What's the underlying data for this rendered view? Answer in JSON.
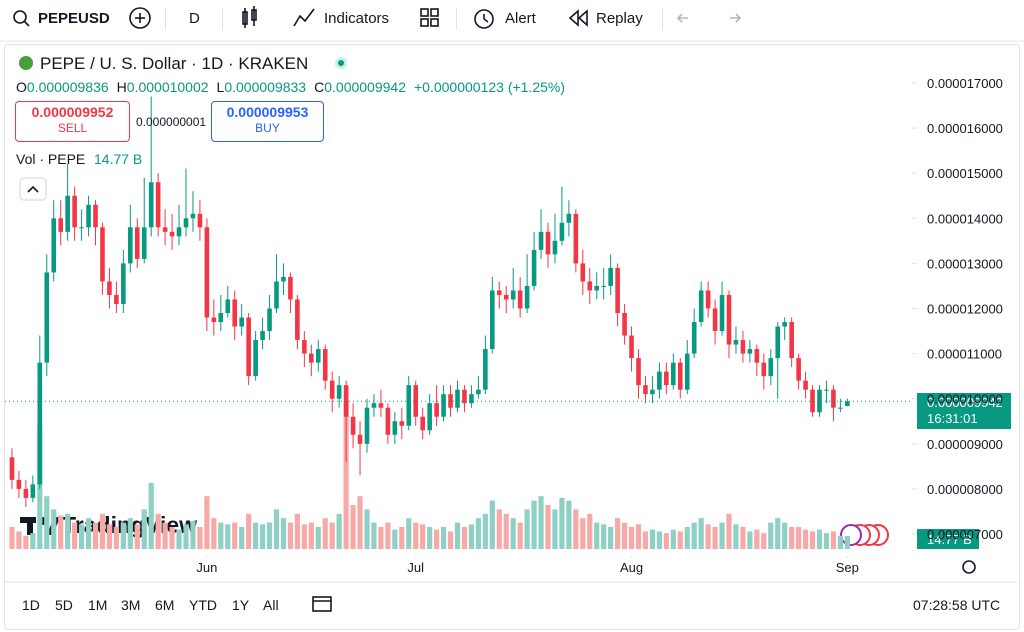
{
  "toolbar": {
    "symbol": "PEPEUSD",
    "interval": "D",
    "indicators": "Indicators",
    "alert": "Alert",
    "replay": "Replay"
  },
  "legend": {
    "title": "PEPE / U. S. Dollar · 1D · KRAKEN",
    "ohlc": [
      {
        "key": "O",
        "value": "0.000009836"
      },
      {
        "key": "H",
        "value": "0.000010002"
      },
      {
        "key": "L",
        "value": "0.000009833"
      },
      {
        "key": "C",
        "value": "0.000009942"
      }
    ],
    "change": "+0.000000123 (+1.25%)",
    "sell_price": "0.000009952",
    "sell": "SELL",
    "spread": "0.000000001",
    "buy_price": "0.000009953",
    "buy": "BUY",
    "vol_title": "Vol · PEPE",
    "vol_value": "14.77 B"
  },
  "watermark": "TradingView",
  "price_label": {
    "price": "0.000009942",
    "countdown": "16:31:01"
  },
  "bottom_bar": {
    "ranges": [
      "1D",
      "5D",
      "1M",
      "3M",
      "6M",
      "YTD",
      "1Y",
      "All"
    ],
    "clock": "07:28:58 UTC"
  },
  "chart_data": {
    "type": "candlestick",
    "up_color": "#089981",
    "down_color": "#f23645",
    "volume_up_color": "#8fd0c5",
    "volume_down_color": "#f7a9a7",
    "xlim": [
      -1,
      129
    ],
    "xticks": [
      {
        "value": 28,
        "label": "Jun"
      },
      {
        "value": 58,
        "label": "Jul"
      },
      {
        "value": 89,
        "label": "Aug"
      },
      {
        "value": 120,
        "label": "Sep"
      }
    ],
    "ylim": [
      6.645e-06,
      1.7776e-05
    ],
    "yticks": [
      {
        "value": 7e-06,
        "label": "0.000007000"
      },
      {
        "value": 8e-06,
        "label": "0.000008000"
      },
      {
        "value": 9e-06,
        "label": "0.000009000"
      },
      {
        "value": 1e-05,
        "label": "0.000010000"
      },
      {
        "value": 1.1e-05,
        "label": "0.000011000"
      },
      {
        "value": 1.2e-05,
        "label": "0.000012000"
      },
      {
        "value": 1.3e-05,
        "label": "0.000013000"
      },
      {
        "value": 1.4e-05,
        "label": "0.000014000"
      },
      {
        "value": 1.5e-05,
        "label": "0.000015000"
      },
      {
        "value": 1.6e-05,
        "label": "0.000016000"
      },
      {
        "value": 1.7e-05,
        "label": "0.000017000"
      }
    ],
    "open": [
      8.7e-06,
      8.2e-06,
      8e-06,
      7.8e-06,
      8.1e-06,
      1.08e-05,
      1.28e-05,
      1.4e-05,
      1.37e-05,
      1.45e-05,
      1.38e-05,
      1.38e-05,
      1.43e-05,
      1.38e-05,
      1.26e-05,
      1.23e-05,
      1.21e-05,
      1.3e-05,
      1.38e-05,
      1.31e-05,
      1.38e-05,
      1.48e-05,
      1.38e-05,
      1.37e-05,
      1.36e-05,
      1.38e-05,
      1.4e-05,
      1.41e-05,
      1.38e-05,
      1.18e-05,
      1.17e-05,
      1.19e-05,
      1.22e-05,
      1.16e-05,
      1.18e-05,
      1.05e-05,
      1.13e-05,
      1.15e-05,
      1.2e-05,
      1.26e-05,
      1.27e-05,
      1.22e-05,
      1.13e-05,
      1.1e-05,
      1.08e-05,
      1.11e-05,
      1.04e-05,
      1e-05,
      1.03e-05,
      9.6e-06,
      9.2e-06,
      9e-06,
      9.8e-06,
      9.9e-06,
      9.8e-06,
      9.2e-06,
      9.5e-06,
      9.4e-06,
      1.03e-05,
      9.6e-06,
      9.3e-06,
      9.9e-06,
      9.6e-06,
      1.01e-05,
      9.8e-06,
      1.02e-05,
      9.9e-06,
      1.01e-05,
      1.02e-05,
      1.11e-05,
      1.24e-05,
      1.23e-05,
      1.22e-05,
      1.24e-05,
      1.2e-05,
      1.25e-05,
      1.33e-05,
      1.37e-05,
      1.32e-05,
      1.35e-05,
      1.39e-05,
      1.41e-05,
      1.3e-05,
      1.26e-05,
      1.24e-05,
      1.25e-05,
      1.25e-05,
      1.29e-05,
      1.19e-05,
      1.14e-05,
      1.09e-05,
      1.03e-05,
      1.01e-05,
      1.02e-05,
      1.06e-05,
      1.03e-05,
      1.08e-05,
      1.02e-05,
      1.1e-05,
      1.17e-05,
      1.24e-05,
      1.2e-05,
      1.15e-05,
      1.23e-05,
      1.12e-05,
      1.13e-05,
      1.1e-05,
      1.11e-05,
      1.08e-05,
      1.05e-05,
      1.09e-05,
      1.16e-05,
      1.17e-05,
      1.09e-05,
      1.04e-05,
      1.02e-05,
      9.7e-06,
      1.02e-05,
      1.02e-05,
      9.8e-06,
      9.836e-06
    ],
    "high": [
      8.9e-06,
      8.4e-06,
      8.2e-06,
      8.3e-06,
      1.14e-05,
      1.32e-05,
      1.44e-05,
      1.44e-05,
      1.52e-05,
      1.47e-05,
      1.42e-05,
      1.45e-05,
      1.44e-05,
      1.39e-05,
      1.29e-05,
      1.26e-05,
      1.33e-05,
      1.43e-05,
      1.4e-05,
      1.49e-05,
      1.67e-05,
      1.5e-05,
      1.42e-05,
      1.41e-05,
      1.43e-05,
      1.51e-05,
      1.46e-05,
      1.44e-05,
      1.4e-05,
      1.22e-05,
      1.23e-05,
      1.25e-05,
      1.24e-05,
      1.21e-05,
      1.19e-05,
      1.15e-05,
      1.18e-05,
      1.23e-05,
      1.32e-05,
      1.3e-05,
      1.28e-05,
      1.23e-05,
      1.15e-05,
      1.12e-05,
      1.13e-05,
      1.12e-05,
      1.06e-05,
      1.05e-05,
      1.04e-05,
      9.9e-06,
      9.5e-06,
      1e-05,
      1.01e-05,
      1.02e-05,
      9.9e-06,
      9.7e-06,
      9.8e-06,
      1.05e-05,
      1.04e-05,
      9.8e-06,
      1.01e-05,
      1.03e-05,
      1.03e-05,
      1.03e-05,
      1.04e-05,
      1.03e-05,
      1.03e-05,
      1.05e-05,
      1.14e-05,
      1.27e-05,
      1.26e-05,
      1.25e-05,
      1.29e-05,
      1.27e-05,
      1.32e-05,
      1.37e-05,
      1.42e-05,
      1.39e-05,
      1.41e-05,
      1.47e-05,
      1.44e-05,
      1.42e-05,
      1.33e-05,
      1.29e-05,
      1.28e-05,
      1.29e-05,
      1.32e-05,
      1.3e-05,
      1.21e-05,
      1.16e-05,
      1.11e-05,
      1.05e-05,
      1.05e-05,
      1.08e-05,
      1.08e-05,
      1.1e-05,
      1.09e-05,
      1.13e-05,
      1.2e-05,
      1.26e-05,
      1.26e-05,
      1.22e-05,
      1.26e-05,
      1.24e-05,
      1.16e-05,
      1.15e-05,
      1.13e-05,
      1.12e-05,
      1.1e-05,
      1.11e-05,
      1.17e-05,
      1.18e-05,
      1.18e-05,
      1.1e-05,
      1.06e-05,
      1.03e-05,
      1.03e-05,
      1.04e-05,
      1.03e-05,
      1e-05,
      1.0002e-05
    ],
    "low": [
      8e-06,
      7.8e-06,
      7.6e-06,
      7.7e-06,
      8e-06,
      1.05e-05,
      1.26e-05,
      1.34e-05,
      1.35e-05,
      1.35e-05,
      1.35e-05,
      1.36e-05,
      1.34e-05,
      1.23e-05,
      1.2e-05,
      1.19e-05,
      1.19e-05,
      1.28e-05,
      1.29e-05,
      1.3e-05,
      1.36e-05,
      1.36e-05,
      1.34e-05,
      1.33e-05,
      1.34e-05,
      1.36e-05,
      1.37e-05,
      1.35e-05,
      1.15e-05,
      1.14e-05,
      1.15e-05,
      1.18e-05,
      1.13e-05,
      1.14e-05,
      1.03e-05,
      1.04e-05,
      1.11e-05,
      1.13e-05,
      1.19e-05,
      1.23e-05,
      1.19e-05,
      1.11e-05,
      1.07e-05,
      1.05e-05,
      1.06e-05,
      1.02e-05,
      9.7e-06,
      9.8e-06,
      8.6e-06,
      8.9e-06,
      8.3e-06,
      8.8e-06,
      9.6e-06,
      9.6e-06,
      9e-06,
      9e-06,
      9.1e-06,
      9.3e-06,
      9.4e-06,
      9.1e-06,
      9.2e-06,
      9.4e-06,
      9.5e-06,
      9.6e-06,
      9.7e-06,
      9.7e-06,
      9.8e-06,
      1e-05,
      1.01e-05,
      1.1e-05,
      1.2e-05,
      1.19e-05,
      1.2e-05,
      1.18e-05,
      1.19e-05,
      1.24e-05,
      1.31e-05,
      1.29e-05,
      1.3e-05,
      1.34e-05,
      1.36e-05,
      1.28e-05,
      1.23e-05,
      1.21e-05,
      1.22e-05,
      1.22e-05,
      1.23e-05,
      1.16e-05,
      1.12e-05,
      1.06e-05,
      1e-05,
      9.9e-06,
      9.9e-06,
      1e-05,
      1.01e-05,
      1.02e-05,
      1e-05,
      1.01e-05,
      1.09e-05,
      1.16e-05,
      1.18e-05,
      1.12e-05,
      1.14e-05,
      1.09e-05,
      1.1e-05,
      1.08e-05,
      1.08e-05,
      1.05e-05,
      1.02e-05,
      1.03e-05,
      1e-05,
      1.13e-05,
      1.07e-05,
      1.02e-05,
      1e-05,
      9.6e-06,
      9.6e-06,
      9.9e-06,
      9.5e-06,
      9.7e-06,
      9.833e-06
    ],
    "close": [
      8.2e-06,
      8e-06,
      7.8e-06,
      8.1e-06,
      1.08e-05,
      1.28e-05,
      1.4e-05,
      1.37e-05,
      1.45e-05,
      1.38e-05,
      1.38e-05,
      1.43e-05,
      1.38e-05,
      1.26e-05,
      1.23e-05,
      1.21e-05,
      1.3e-05,
      1.38e-05,
      1.31e-05,
      1.38e-05,
      1.48e-05,
      1.38e-05,
      1.37e-05,
      1.36e-05,
      1.38e-05,
      1.4e-05,
      1.41e-05,
      1.38e-05,
      1.18e-05,
      1.17e-05,
      1.19e-05,
      1.22e-05,
      1.16e-05,
      1.18e-05,
      1.05e-05,
      1.13e-05,
      1.15e-05,
      1.2e-05,
      1.26e-05,
      1.27e-05,
      1.22e-05,
      1.13e-05,
      1.1e-05,
      1.08e-05,
      1.11e-05,
      1.04e-05,
      1e-05,
      1.03e-05,
      9.6e-06,
      9.2e-06,
      9e-06,
      9.8e-06,
      9.9e-06,
      9.8e-06,
      9.2e-06,
      9.5e-06,
      9.4e-06,
      1.03e-05,
      9.6e-06,
      9.3e-06,
      9.9e-06,
      9.6e-06,
      1.01e-05,
      9.8e-06,
      1.02e-05,
      9.9e-06,
      1.01e-05,
      1.02e-05,
      1.11e-05,
      1.24e-05,
      1.23e-05,
      1.22e-05,
      1.24e-05,
      1.2e-05,
      1.25e-05,
      1.33e-05,
      1.37e-05,
      1.32e-05,
      1.35e-05,
      1.39e-05,
      1.41e-05,
      1.3e-05,
      1.26e-05,
      1.24e-05,
      1.25e-05,
      1.25e-05,
      1.29e-05,
      1.19e-05,
      1.14e-05,
      1.09e-05,
      1.03e-05,
      1.01e-05,
      1.02e-05,
      1.06e-05,
      1.03e-05,
      1.08e-05,
      1.02e-05,
      1.1e-05,
      1.17e-05,
      1.24e-05,
      1.2e-05,
      1.15e-05,
      1.23e-05,
      1.12e-05,
      1.13e-05,
      1.1e-05,
      1.11e-05,
      1.08e-05,
      1.05e-05,
      1.09e-05,
      1.16e-05,
      1.17e-05,
      1.09e-05,
      1.04e-05,
      1.02e-05,
      9.7e-06,
      1.02e-05,
      1.02e-05,
      9.8e-06,
      9.8e-06,
      9.942e-06
    ],
    "volume": [
      25,
      20,
      15,
      18,
      141,
      60,
      45,
      38,
      40,
      30,
      28,
      35,
      30,
      40,
      28,
      25,
      30,
      35,
      28,
      45,
      75,
      40,
      30,
      25,
      22,
      28,
      32,
      25,
      60,
      35,
      30,
      28,
      30,
      25,
      40,
      30,
      28,
      30,
      45,
      35,
      30,
      40,
      28,
      30,
      25,
      35,
      30,
      40,
      169,
      50,
      60,
      45,
      30,
      25,
      30,
      22,
      25,
      35,
      30,
      28,
      25,
      22,
      25,
      20,
      30,
      25,
      28,
      35,
      40,
      55,
      45,
      40,
      35,
      30,
      45,
      55,
      60,
      50,
      45,
      58,
      55,
      45,
      35,
      40,
      30,
      28,
      25,
      35,
      30,
      25,
      28,
      20,
      22,
      20,
      18,
      22,
      20,
      25,
      30,
      35,
      28,
      25,
      30,
      40,
      28,
      25,
      20,
      22,
      18,
      30,
      35,
      30,
      25,
      25,
      22,
      20,
      22,
      18,
      20,
      15,
      14.77
    ]
  }
}
